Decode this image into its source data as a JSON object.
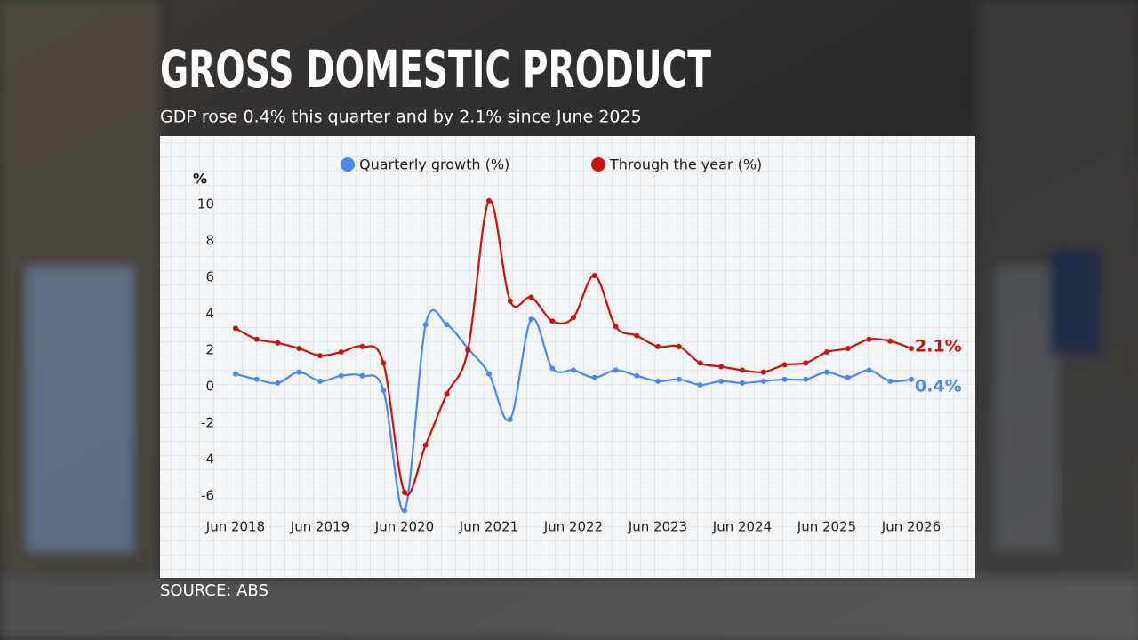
{
  "chart_data": {
    "type": "line",
    "title": "GROSS DOMESTIC PRODUCT",
    "subtitle": "GDP rose 0.4% this quarter and by 2.1% since June 2025",
    "source": "SOURCE: ABS",
    "y_label": "%",
    "categories": [
      "Jun 2018",
      null,
      null,
      null,
      "Jun 2019",
      null,
      null,
      null,
      "Jun 2020",
      null,
      null,
      null,
      "Jun 2021",
      null,
      null,
      null,
      "Jun 2022",
      null,
      null,
      null,
      "Jun 2023",
      null,
      null,
      null,
      "Jun 2024",
      null,
      null,
      null,
      "Jun 2025",
      null,
      null,
      null,
      "Jun 2026"
    ],
    "series": [
      {
        "name": "Quarterly growth (%)",
        "color": "#4a8af0",
        "values": [
          0.7,
          0.4,
          0.2,
          0.8,
          0.3,
          0.6,
          0.6,
          -0.2,
          -6.8,
          3.4,
          3.4,
          2.1,
          0.7,
          -1.8,
          3.7,
          1.0,
          0.9,
          0.5,
          0.9,
          0.6,
          0.3,
          0.4,
          0.1,
          0.3,
          0.2,
          0.3,
          0.4,
          0.4,
          0.8,
          0.5,
          0.9,
          0.3,
          0.4
        ],
        "value_labels": [
          null,
          null,
          null,
          null,
          null,
          null,
          null,
          null,
          null,
          null,
          null,
          null,
          null,
          null,
          null,
          null,
          null,
          null,
          null,
          null,
          null,
          null,
          null,
          null,
          null,
          null,
          null,
          null,
          null,
          null,
          null,
          null,
          "0.4%"
        ]
      },
      {
        "name": "Through the year (%)",
        "color": "#cc1111",
        "values": [
          3.2,
          2.6,
          2.4,
          2.1,
          1.7,
          1.9,
          2.2,
          1.3,
          -5.8,
          -3.2,
          -0.4,
          2.0,
          10.2,
          4.7,
          4.9,
          3.6,
          3.8,
          6.1,
          3.3,
          2.8,
          2.2,
          2.2,
          1.3,
          1.1,
          0.9,
          0.8,
          1.2,
          1.3,
          1.9,
          2.1,
          2.6,
          2.5,
          2.1
        ],
        "value_labels": [
          null,
          null,
          null,
          null,
          null,
          null,
          null,
          null,
          null,
          null,
          null,
          null,
          null,
          null,
          null,
          null,
          null,
          null,
          null,
          null,
          null,
          null,
          null,
          null,
          null,
          null,
          null,
          null,
          null,
          null,
          null,
          null,
          "2.1%"
        ]
      }
    ],
    "ylim": [
      -7,
      10.5
    ],
    "yticks": [
      -6,
      -4,
      -2,
      0,
      2,
      4,
      6,
      8,
      10
    ]
  }
}
